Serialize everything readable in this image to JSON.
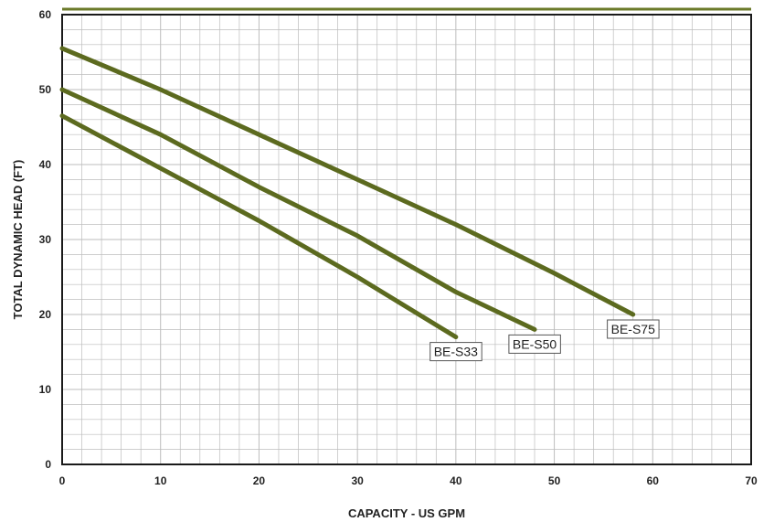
{
  "chart_data": {
    "type": "line",
    "title": "",
    "xlabel": "CAPACITY - US GPM",
    "ylabel": "TOTAL DYNAMIC HEAD (FT)",
    "xlim": [
      0,
      70
    ],
    "ylim": [
      0,
      60
    ],
    "x_ticks": [
      "0",
      "10",
      "20",
      "30",
      "40",
      "50",
      "60",
      "70"
    ],
    "y_ticks": [
      "0",
      "10",
      "20",
      "30",
      "40",
      "50",
      "60"
    ],
    "grid": true,
    "series": [
      {
        "name": "BE-S33",
        "x": [
          0,
          10,
          20,
          30,
          40
        ],
        "y": [
          46.5,
          39.5,
          32.5,
          25.0,
          17.0
        ]
      },
      {
        "name": "BE-S50",
        "x": [
          0,
          10,
          20,
          30,
          40,
          48
        ],
        "y": [
          50.0,
          44.0,
          37.0,
          30.5,
          23.0,
          18.0
        ]
      },
      {
        "name": "BE-S75",
        "x": [
          0,
          10,
          20,
          30,
          40,
          50,
          58
        ],
        "y": [
          55.5,
          50.0,
          44.0,
          38.0,
          32.0,
          25.5,
          20.0
        ]
      }
    ],
    "colors": {
      "line": "#5c6a1f",
      "grid": "#bdbdbd",
      "frame": "#1a1a1a",
      "top_rule": "#6b7a2a"
    }
  }
}
